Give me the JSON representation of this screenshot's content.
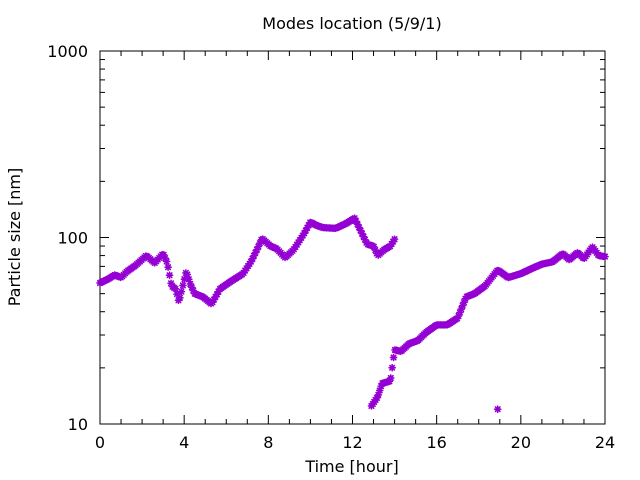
{
  "chart_data": {
    "type": "scatter",
    "title": "Modes location (5/9/1)",
    "xlabel": "Time [hour]",
    "ylabel": "Particle size [nm]",
    "xlim": [
      0,
      24
    ],
    "ylim": [
      10,
      1000
    ],
    "y_scale": "log",
    "grid": false,
    "legend": "none",
    "marker_color": "#9400d3",
    "x_ticks": [
      0,
      4,
      8,
      12,
      16,
      20,
      24
    ],
    "x_tick_labels": [
      "0",
      "4",
      "8",
      "12",
      "16",
      "20",
      "24"
    ],
    "y_ticks": [
      10,
      100,
      1000
    ],
    "y_tick_labels": [
      "10",
      "100",
      "1000"
    ],
    "series": [
      {
        "name": "",
        "anchors": [
          [
            0.0,
            57
          ],
          [
            0.4,
            60
          ],
          [
            0.7,
            63
          ],
          [
            1.0,
            61
          ],
          [
            1.3,
            66
          ],
          [
            1.7,
            71
          ],
          [
            2.2,
            80
          ],
          [
            2.6,
            73
          ],
          [
            3.0,
            82
          ],
          [
            3.2,
            73
          ],
          [
            3.4,
            55
          ],
          [
            3.6,
            53
          ],
          [
            3.75,
            45
          ],
          [
            3.9,
            53
          ],
          [
            4.1,
            66
          ],
          [
            4.3,
            56
          ],
          [
            4.5,
            50
          ],
          [
            4.9,
            48
          ],
          [
            5.3,
            44
          ],
          [
            5.7,
            53
          ],
          [
            6.2,
            58
          ],
          [
            6.8,
            64
          ],
          [
            7.2,
            75
          ],
          [
            7.5,
            88
          ],
          [
            7.7,
            99
          ],
          [
            8.1,
            90
          ],
          [
            8.4,
            87
          ],
          [
            8.8,
            78
          ],
          [
            9.2,
            86
          ],
          [
            9.7,
            105
          ],
          [
            10.0,
            121
          ],
          [
            10.3,
            116
          ],
          [
            10.6,
            113
          ],
          [
            11.2,
            112
          ],
          [
            11.7,
            119
          ],
          [
            12.1,
            127
          ],
          [
            12.4,
            108
          ],
          [
            12.7,
            92
          ],
          [
            13.0,
            90
          ],
          [
            13.2,
            80
          ],
          [
            13.5,
            86
          ],
          [
            13.8,
            90
          ],
          [
            14.0,
            98
          ]
        ],
        "count": 200
      },
      {
        "name": "",
        "anchors": [
          [
            12.9,
            12.5
          ],
          [
            13.2,
            14
          ],
          [
            13.4,
            16.5
          ],
          [
            13.8,
            17
          ],
          [
            14.0,
            25
          ],
          [
            14.3,
            24.5
          ],
          [
            14.7,
            27
          ],
          [
            15.1,
            28
          ],
          [
            15.5,
            31
          ],
          [
            16.0,
            34
          ],
          [
            16.5,
            34
          ],
          [
            17.0,
            37
          ],
          [
            17.4,
            48
          ],
          [
            17.8,
            50
          ],
          [
            18.3,
            55
          ],
          [
            18.9,
            67
          ],
          [
            19.4,
            61
          ],
          [
            20.0,
            64
          ],
          [
            20.5,
            68
          ],
          [
            21.0,
            72
          ],
          [
            21.5,
            74
          ],
          [
            22.0,
            82
          ],
          [
            22.3,
            76
          ],
          [
            22.7,
            83
          ],
          [
            23.0,
            77
          ],
          [
            23.4,
            89
          ],
          [
            23.7,
            80
          ],
          [
            24.0,
            79
          ]
        ],
        "count": 170
      },
      {
        "name": "",
        "points": [
          [
            18.9,
            12
          ]
        ]
      }
    ]
  }
}
